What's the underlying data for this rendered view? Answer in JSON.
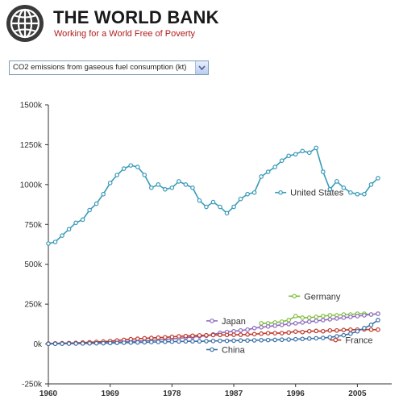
{
  "header": {
    "title": "THE WORLD BANK",
    "tagline": "Working for a World Free of Poverty"
  },
  "indicator_select": {
    "selected": "CO2 emissions from gaseous fuel consumption (kt)"
  },
  "icons": {
    "logo": "world-bank-globe-logo",
    "dropdown": "chevron-down-icon"
  },
  "chart_data": {
    "type": "line",
    "title": "",
    "xlabel": "",
    "ylabel": "",
    "xlim": [
      1960,
      2010
    ],
    "ylim": [
      -250000,
      1500000
    ],
    "grid": false,
    "x_ticks": [
      1960,
      1969,
      1978,
      1987,
      1996,
      2005
    ],
    "x_tick_labels": [
      "1960",
      "1969",
      "1978",
      "1987",
      "1996",
      "2005"
    ],
    "y_ticks": [
      -250000,
      0,
      250000,
      500000,
      750000,
      1000000,
      1250000,
      1500000
    ],
    "y_tick_labels": [
      "-250k",
      "0k",
      "250k",
      "500k",
      "750k",
      "1000k",
      "1250k",
      "1500k"
    ],
    "series": [
      {
        "name": "United States",
        "color": "#3a9bb8",
        "x": [
          1960,
          1961,
          1962,
          1963,
          1964,
          1965,
          1966,
          1967,
          1968,
          1969,
          1970,
          1971,
          1972,
          1973,
          1974,
          1975,
          1976,
          1977,
          1978,
          1979,
          1980,
          1981,
          1982,
          1983,
          1984,
          1985,
          1986,
          1987,
          1988,
          1989,
          1990,
          1991,
          1992,
          1993,
          1994,
          1995,
          1996,
          1997,
          1998,
          1999,
          2000,
          2001,
          2002,
          2003,
          2004,
          2005,
          2006,
          2007,
          2008
        ],
        "values": [
          630000,
          640000,
          680000,
          720000,
          760000,
          780000,
          840000,
          880000,
          940000,
          1010000,
          1060000,
          1100000,
          1120000,
          1110000,
          1060000,
          980000,
          1000000,
          970000,
          980000,
          1020000,
          1000000,
          980000,
          900000,
          860000,
          890000,
          860000,
          820000,
          860000,
          910000,
          940000,
          950000,
          1050000,
          1080000,
          1110000,
          1150000,
          1180000,
          1190000,
          1210000,
          1200000,
          1230000,
          1080000,
          970000,
          1020000,
          980000,
          950000,
          940000,
          940000,
          1000000,
          1040000
        ]
      },
      {
        "name": "Germany",
        "color": "#7fbf3f",
        "x": [
          1991,
          1992,
          1993,
          1994,
          1995,
          1996,
          1997,
          1998,
          1999,
          2000,
          2001,
          2002,
          2003,
          2004,
          2005,
          2006,
          2007,
          2008
        ],
        "values": [
          130000,
          130000,
          135000,
          140000,
          150000,
          175000,
          165000,
          165000,
          170000,
          175000,
          180000,
          180000,
          185000,
          185000,
          190000,
          190000,
          185000,
          190000
        ]
      },
      {
        "name": "Japan",
        "color": "#8e6bbf",
        "x": [
          1960,
          1961,
          1962,
          1963,
          1964,
          1965,
          1966,
          1967,
          1968,
          1969,
          1970,
          1971,
          1972,
          1973,
          1974,
          1975,
          1976,
          1977,
          1978,
          1979,
          1980,
          1981,
          1982,
          1983,
          1984,
          1985,
          1986,
          1987,
          1988,
          1989,
          1990,
          1991,
          1992,
          1993,
          1994,
          1995,
          1996,
          1997,
          1998,
          1999,
          2000,
          2001,
          2002,
          2003,
          2004,
          2005,
          2006,
          2007,
          2008
        ],
        "values": [
          2000,
          2500,
          3000,
          3500,
          4000,
          5000,
          6000,
          7000,
          8000,
          10000,
          12000,
          14000,
          16000,
          18000,
          20000,
          22000,
          25000,
          28000,
          32000,
          36000,
          40000,
          44000,
          48000,
          52000,
          60000,
          70000,
          75000,
          80000,
          85000,
          90000,
          100000,
          105000,
          110000,
          115000,
          120000,
          125000,
          130000,
          135000,
          140000,
          145000,
          150000,
          155000,
          160000,
          165000,
          170000,
          175000,
          180000,
          185000,
          190000
        ]
      },
      {
        "name": "France",
        "color": "#c0392b",
        "x": [
          1960,
          1961,
          1962,
          1963,
          1964,
          1965,
          1966,
          1967,
          1968,
          1969,
          1970,
          1971,
          1972,
          1973,
          1974,
          1975,
          1976,
          1977,
          1978,
          1979,
          1980,
          1981,
          1982,
          1983,
          1984,
          1985,
          1986,
          1987,
          1988,
          1989,
          1990,
          1991,
          1992,
          1993,
          1994,
          1995,
          1996,
          1997,
          1998,
          1999,
          2000,
          2001,
          2002,
          2003,
          2004,
          2005,
          2006,
          2007,
          2008
        ],
        "values": [
          3000,
          4000,
          5000,
          6000,
          7000,
          9000,
          11000,
          13000,
          15000,
          18000,
          22000,
          26000,
          30000,
          33000,
          36000,
          38000,
          40000,
          42000,
          45000,
          48000,
          50000,
          52000,
          54000,
          55000,
          56000,
          57000,
          57000,
          58000,
          58000,
          60000,
          62000,
          65000,
          68000,
          68000,
          68000,
          72000,
          78000,
          75000,
          80000,
          82000,
          80000,
          85000,
          85000,
          88000,
          90000,
          90000,
          92000,
          90000,
          90000
        ]
      },
      {
        "name": "China",
        "color": "#3d72a8",
        "x": [
          1960,
          1961,
          1962,
          1963,
          1964,
          1965,
          1966,
          1967,
          1968,
          1969,
          1970,
          1971,
          1972,
          1973,
          1974,
          1975,
          1976,
          1977,
          1978,
          1979,
          1980,
          1981,
          1982,
          1983,
          1984,
          1985,
          1986,
          1987,
          1988,
          1989,
          1990,
          1991,
          1992,
          1993,
          1994,
          1995,
          1996,
          1997,
          1998,
          1999,
          2000,
          2001,
          2002,
          2003,
          2004,
          2005,
          2006,
          2007,
          2008
        ],
        "values": [
          1000,
          1500,
          2000,
          2500,
          3000,
          3500,
          4000,
          4500,
          5000,
          6000,
          7000,
          8000,
          9000,
          10000,
          11000,
          12000,
          13000,
          14000,
          15000,
          16000,
          17000,
          17000,
          17000,
          18000,
          19000,
          20000,
          20000,
          21000,
          22000,
          22000,
          23000,
          24000,
          25000,
          26000,
          27000,
          28000,
          30000,
          32000,
          34000,
          36000,
          38000,
          42000,
          48000,
          55000,
          65000,
          80000,
          100000,
          120000,
          150000
        ]
      }
    ],
    "series_label_positions": {
      "United States": "right of 1993 point (~950k)",
      "Germany": "above Germany series near 1995",
      "Japan": "left of Japan series near 1983",
      "China": "below China series near 1982",
      "France": "right edge near 2001"
    }
  }
}
